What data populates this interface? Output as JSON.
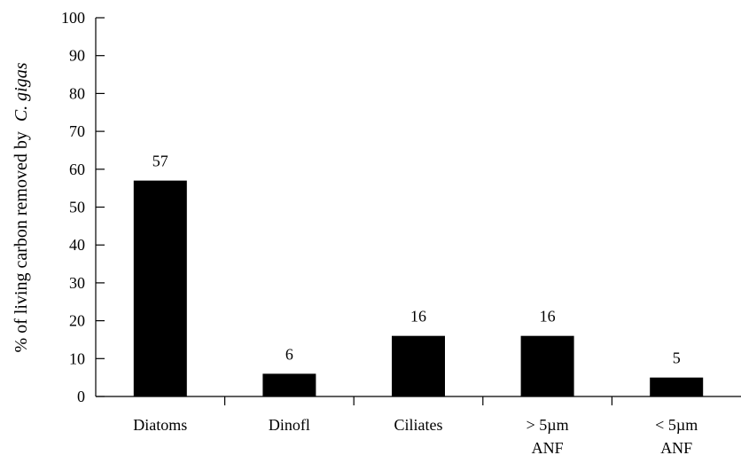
{
  "chart_data": {
    "type": "bar",
    "categories": [
      [
        "Diatoms"
      ],
      [
        "Dinofl"
      ],
      [
        "Ciliates"
      ],
      [
        "> 5µm",
        "ANF"
      ],
      [
        "< 5µm",
        "ANF"
      ]
    ],
    "values": [
      57,
      6,
      16,
      16,
      5
    ],
    "value_labels": [
      "57",
      "6",
      "16",
      "16",
      "5"
    ],
    "ylabel_prefix": "% of living carbon removed by",
    "ylabel_species": "C. gigas",
    "ylim": [
      0,
      100
    ],
    "yticks": [
      0,
      10,
      20,
      30,
      40,
      50,
      60,
      70,
      80,
      90,
      100
    ],
    "grid": false,
    "bar_color": "#000000"
  }
}
